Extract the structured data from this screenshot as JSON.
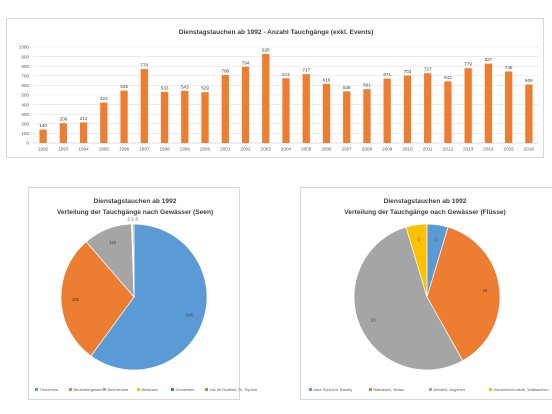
{
  "chart_data": [
    {
      "type": "bar",
      "title": "Dienstagstauchen ab 1992 - Anzahl Tauchgänge (exkl. Events)",
      "categories": [
        "1992",
        "1993",
        "1994",
        "1995",
        "1996",
        "1997",
        "1998",
        "1999",
        "2000",
        "2001",
        "2002",
        "2003",
        "2004",
        "2005",
        "2006",
        "2007",
        "2008",
        "2009",
        "2010",
        "2011",
        "2012",
        "2013",
        "2014",
        "2015",
        "2016"
      ],
      "values": [
        140,
        206,
        214,
        422,
        545,
        770,
        533,
        543,
        529,
        708,
        794,
        928,
        674,
        717,
        616,
        538,
        561,
        671,
        703,
        727,
        642,
        779,
        827,
        745,
        609
      ],
      "yticks": [
        0,
        100,
        200,
        300,
        400,
        500,
        600,
        700,
        800,
        900,
        1000
      ],
      "ylim": [
        0,
        1000
      ],
      "grid": true,
      "color": "#ed7d31"
    },
    {
      "type": "pie",
      "title": "Dienstagstauchen ab 1992",
      "subtitle": "Verteilung der Tauchgänge nach Gewässer (Seen)",
      "slices": [
        {
          "name": "Thunersee",
          "value": 646,
          "label": "646",
          "color": "#5b9bd5"
        },
        {
          "name": "Neuenburgersee",
          "value": 308,
          "label": "308",
          "color": "#ed7d31"
        },
        {
          "name": "Brienzersee",
          "value": 116,
          "label": "116",
          "color": "#a5a5a5"
        },
        {
          "name": "Bielersee",
          "value": 2,
          "label": "2",
          "color": "#ffc000"
        },
        {
          "name": "Gerzensee",
          "value": 1,
          "label": "1",
          "color": "#4472c4"
        },
        {
          "name": "Lac de Dudilliet, St. Triphon",
          "value": 3,
          "label": "3",
          "color": "#70ad47"
        }
      ],
      "legend": "bottom"
    },
    {
      "type": "pie",
      "title": "Dienstagstauchen ab 1992",
      "subtitle": "Verteilung der Tauchgänge nach Gewässer (Flüsse)",
      "slices": [
        {
          "name": "Aare Schlucht, Baudry",
          "value": 2,
          "label": "2",
          "color": "#5b9bd5"
        },
        {
          "name": "Bälisalach, Wolau",
          "value": 16,
          "label": "16",
          "color": "#ed7d31"
        },
        {
          "name": "Kiesfeld, Aegerten",
          "value": 23,
          "label": "23",
          "color": "#a5a5a5"
        },
        {
          "name": "Hammerschmiede, Wattlauchen",
          "value": 2,
          "label": "2",
          "color": "#ffc000"
        }
      ],
      "legend": "bottom"
    }
  ]
}
